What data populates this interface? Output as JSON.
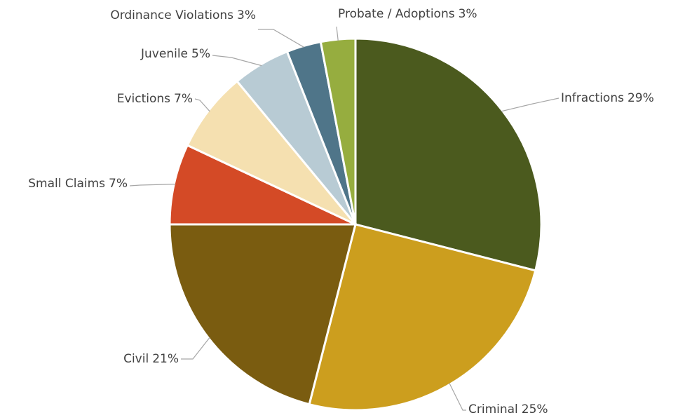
{
  "chart_data": {
    "type": "pie",
    "categories": [
      "Infractions",
      "Criminal",
      "Civil",
      "Small Claims",
      "Evictions",
      "Juvenile",
      "Ordinance Violations",
      "Probate / Adoptions"
    ],
    "values": [
      29,
      25,
      21,
      7,
      7,
      5,
      3,
      3
    ],
    "value_labels": [
      "29%",
      "25%",
      "21%",
      "7%",
      "7%",
      "5%",
      "3%",
      "3%"
    ],
    "colors": [
      "#4b5a1e",
      "#cc9e1e",
      "#7a5c10",
      "#d44a26",
      "#f5e0b0",
      "#b8cbd4",
      "#4f7589",
      "#96ad3f"
    ]
  }
}
